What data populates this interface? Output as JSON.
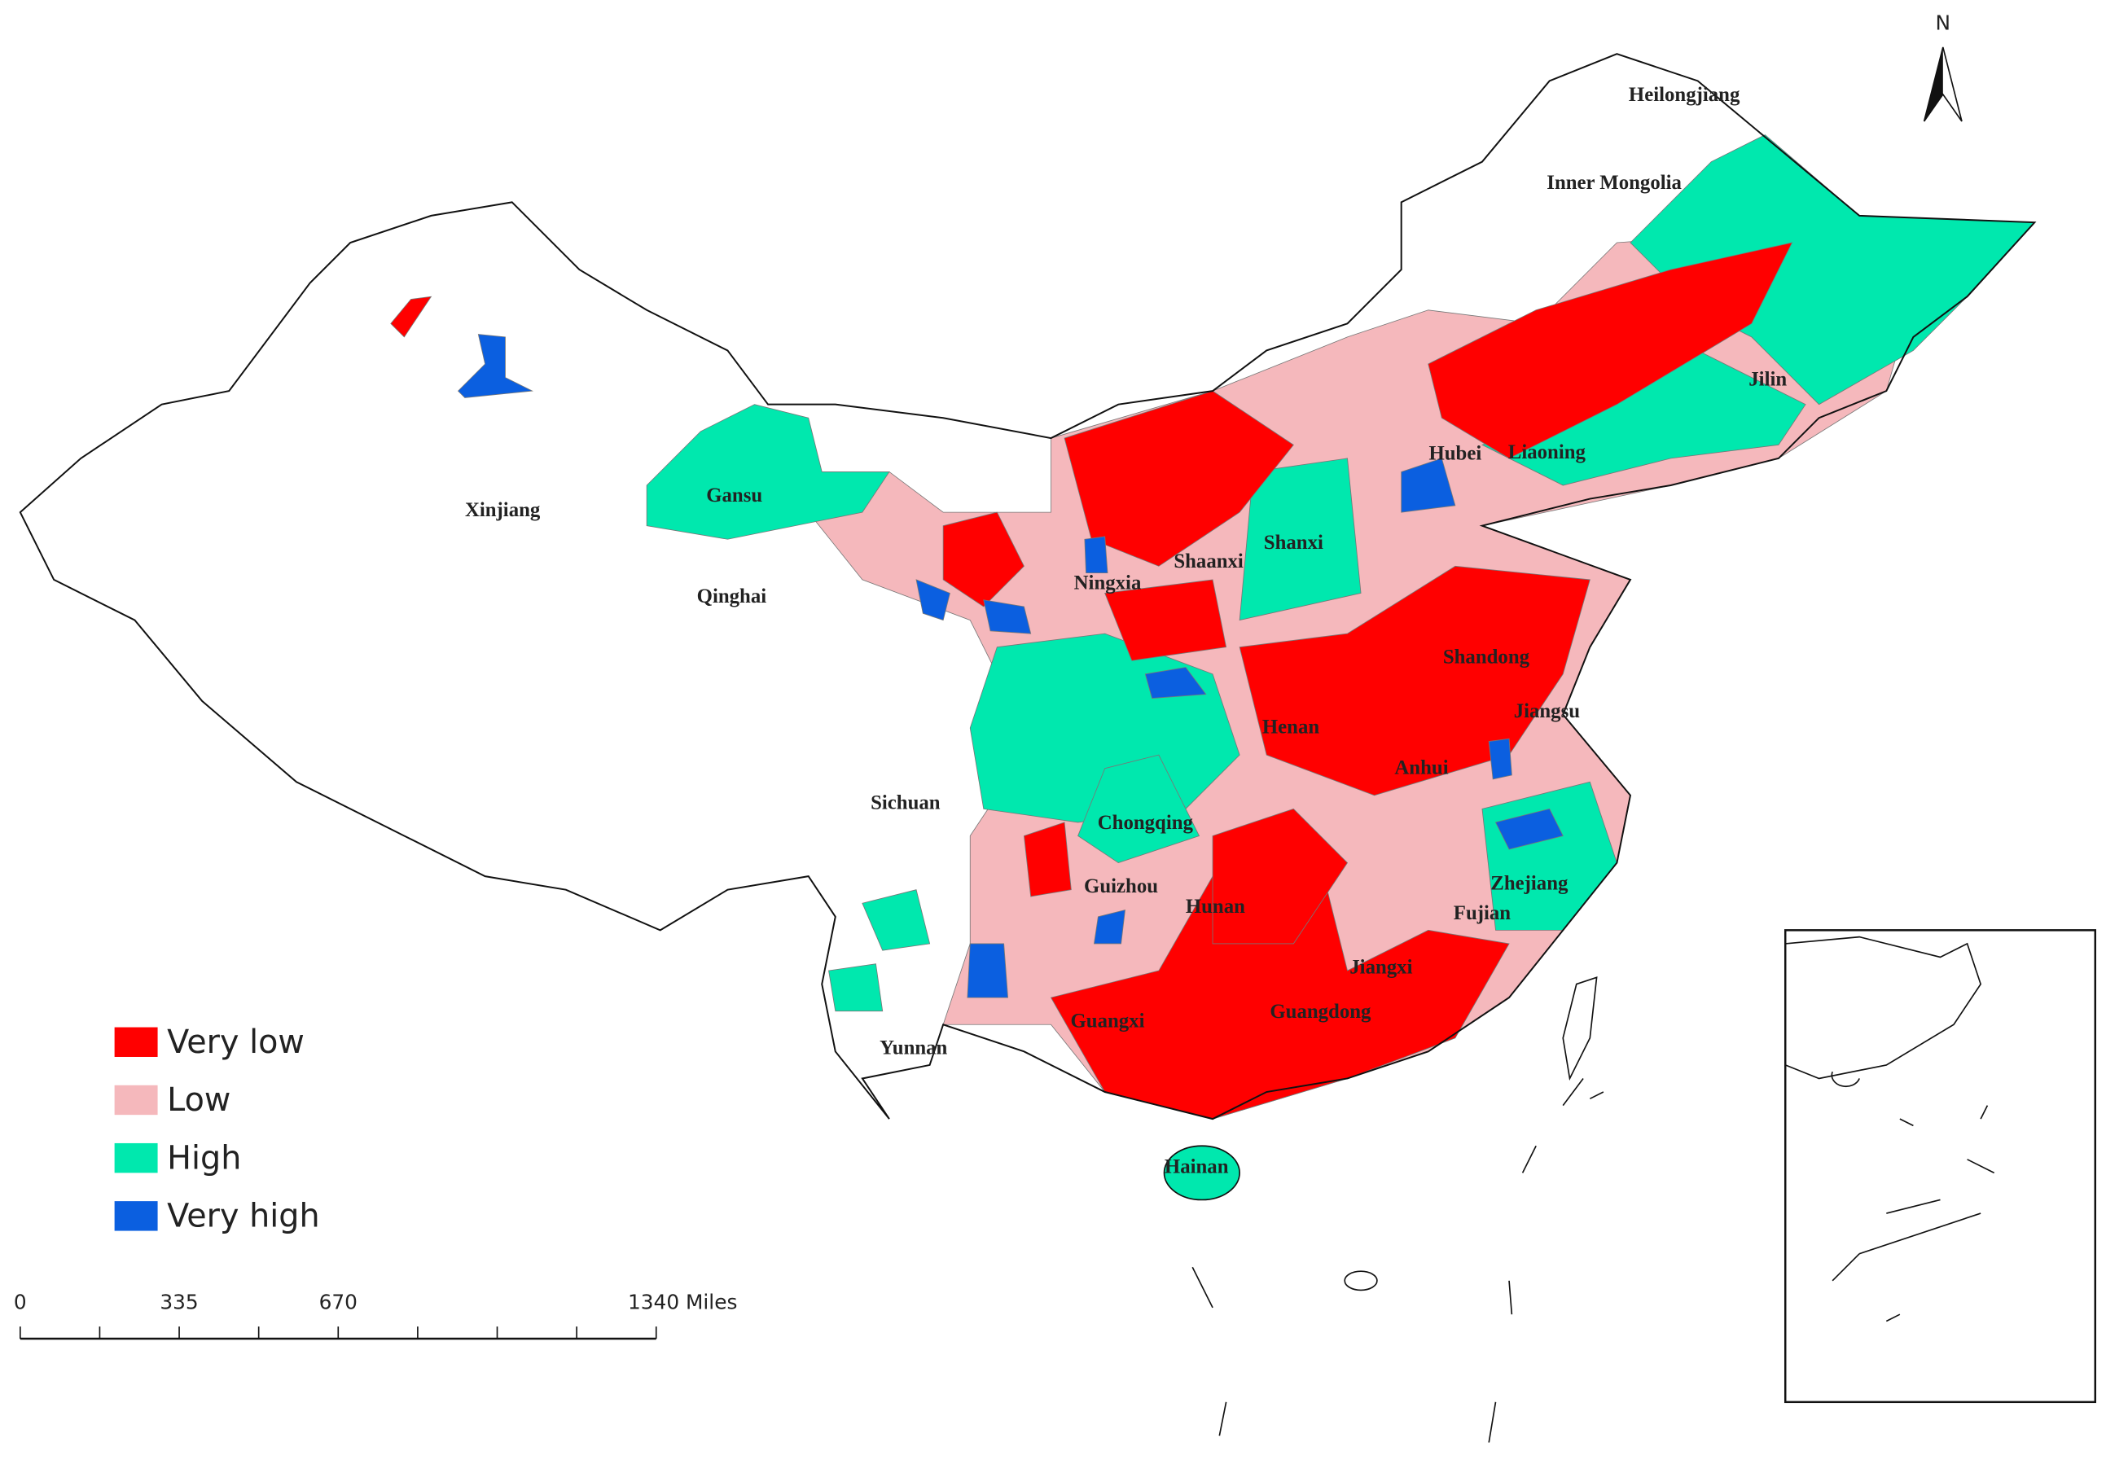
{
  "map": {
    "north_label": "N",
    "legend": [
      {
        "label": "Very low",
        "color": "#ff0000"
      },
      {
        "label": "Low",
        "color": "#f5b8bc"
      },
      {
        "label": "High",
        "color": "#00e8ae"
      },
      {
        "label": "Very high",
        "color": "#0b5fe0"
      }
    ],
    "provinces": [
      "Heilongjiang",
      "Inner Mongolia",
      "Jilin",
      "Liaoning",
      "Hubei",
      "Xinjiang",
      "Gansu",
      "Qinghai",
      "Shanxi",
      "Shaanxi",
      "Ningxia",
      "Shandong",
      "Jiangsu",
      "Henan",
      "Anhui",
      "Sichuan",
      "Chongqing",
      "Zhejiang",
      "Fujian",
      "Guizhou",
      "Hunan",
      "Jiangxi",
      "Guangdong",
      "Guangxi",
      "Yunnan",
      "Hainan"
    ],
    "scale_bar": [
      "0",
      "335",
      "670",
      "1340 Miles"
    ]
  }
}
